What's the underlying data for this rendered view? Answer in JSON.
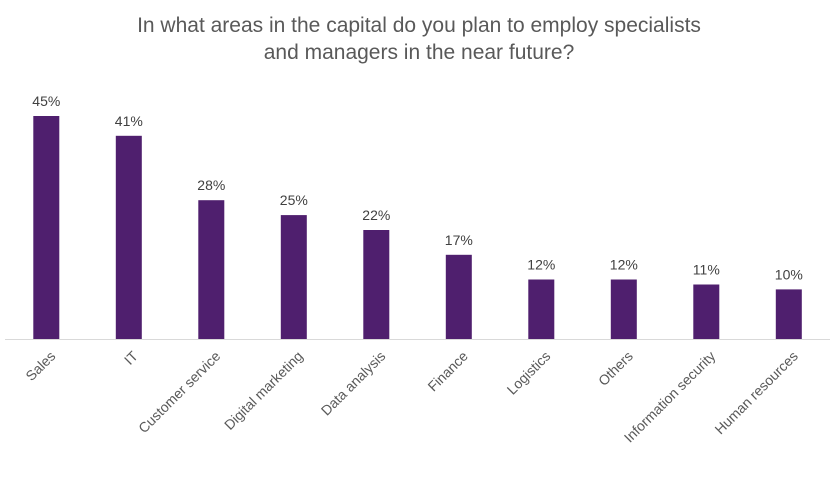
{
  "chart_data": {
    "type": "bar",
    "title_lines": [
      "In what areas in the capital do you plan to employ specialists",
      "and managers in the near future?"
    ],
    "categories": [
      "Sales",
      "IT",
      "Customer service",
      "Digital marketing",
      "Data analysis",
      "Finance",
      "Logistics",
      "Others",
      "Information security",
      "Human resources"
    ],
    "values": [
      45,
      41,
      28,
      25,
      22,
      17,
      12,
      12,
      11,
      10
    ],
    "value_labels": [
      "45%",
      "41%",
      "28%",
      "25%",
      "22%",
      "17%",
      "12%",
      "12%",
      "11%",
      "10%"
    ],
    "xlabel": "",
    "ylabel": "",
    "ylim": [
      0,
      45
    ],
    "grid": false,
    "legend": "none",
    "colors": {
      "bar": "#4f1f6e",
      "axis": "#d9d9d9",
      "label_text": "#404040",
      "category_text": "#595959",
      "title_text": "#595959"
    }
  }
}
